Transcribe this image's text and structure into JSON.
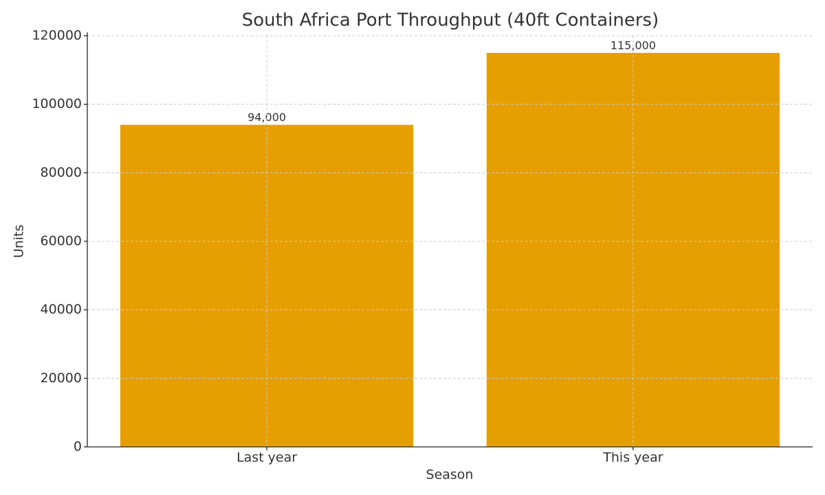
{
  "chart_data": {
    "type": "bar",
    "title": "South Africa Port Throughput (40ft Containers)",
    "x_label": "Season",
    "y_label": "Units",
    "categories": [
      "Last year",
      "This year"
    ],
    "values": [
      94000,
      115000
    ],
    "value_labels": [
      "94,000",
      "115,000"
    ],
    "color": "#e69f00",
    "ylim": [
      0,
      120000
    ],
    "yticks": [
      0,
      20000,
      40000,
      60000,
      80000,
      100000,
      120000
    ],
    "grid": true
  }
}
